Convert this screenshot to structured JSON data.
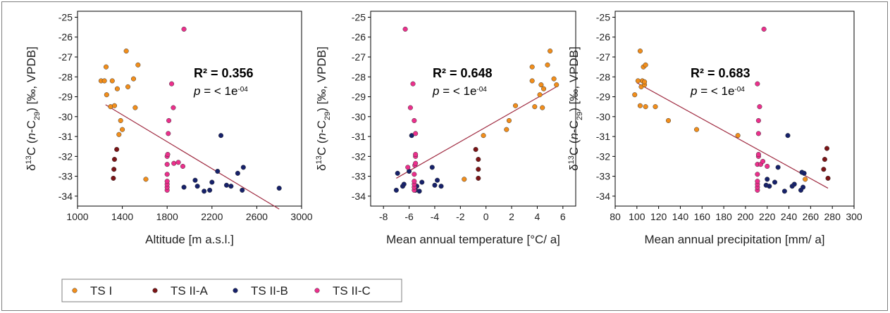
{
  "figure": {
    "y_axis_label": {
      "pre": "δ",
      "sup1": "13",
      "mid1": "C (",
      "italic": "n",
      "mid2": "-C",
      "sub": "29",
      "post": ") [‰, VPDB]"
    },
    "legend": [
      {
        "name": "TS I",
        "color": "#f28e1b"
      },
      {
        "name": "TS II-A",
        "color": "#7b1416"
      },
      {
        "name": "TS II-B",
        "color": "#16216a"
      },
      {
        "name": "TS II-C",
        "color": "#ec2f8c"
      }
    ],
    "colors": {
      "trendline": "#a02c42",
      "axis": "#000000",
      "frame": "#7f7f7f",
      "point_edge": "#3a3a3a"
    }
  },
  "chart_data": [
    {
      "type": "scatter",
      "xlabel": "Altitude [m a.s.l.]",
      "ylabel": "δ13C (n-C29) [‰, VPDB]",
      "xlim": [
        1000,
        3000
      ],
      "ylim": [
        -34.5,
        -24.7
      ],
      "xticks": [
        "1000",
        "1400",
        "1800",
        "2200",
        "2600",
        "3000"
      ],
      "yticks": [
        "-25",
        "-26",
        "-27",
        "-28",
        "-29",
        "-30",
        "-31",
        "-32",
        "-33",
        "-34"
      ],
      "annotation": {
        "r2": "R² = 0.356",
        "p_prefix": "p",
        "p_text": " = < 1e",
        "p_exp": "-04"
      },
      "trendline": [
        [
          1250,
          -29.4
        ],
        [
          2800,
          -34.65
        ]
      ],
      "series": [
        {
          "name": "TS I",
          "points": [
            [
              1210,
              -28.2
            ],
            [
              1240,
              -28.2
            ],
            [
              1255,
              -27.5
            ],
            [
              1260,
              -28.9
            ],
            [
              1295,
              -29.5
            ],
            [
              1310,
              -28.2
            ],
            [
              1330,
              -29.45
            ],
            [
              1355,
              -28.6
            ],
            [
              1370,
              -30.9
            ],
            [
              1385,
              -30.2
            ],
            [
              1400,
              -30.65
            ],
            [
              1435,
              -26.7
            ],
            [
              1450,
              -28.5
            ],
            [
              1500,
              -28.1
            ],
            [
              1515,
              -29.55
            ],
            [
              1540,
              -27.4
            ],
            [
              1610,
              -33.15
            ]
          ]
        },
        {
          "name": "TS II-A",
          "points": [
            [
              1320,
              -33.1
            ],
            [
              1325,
              -32.65
            ],
            [
              1330,
              -32.15
            ],
            [
              1350,
              -31.65
            ]
          ]
        },
        {
          "name": "TS II-B",
          "points": [
            [
              1950,
              -33.55
            ],
            [
              2050,
              -33.2
            ],
            [
              2070,
              -33.5
            ],
            [
              2130,
              -33.75
            ],
            [
              2180,
              -33.7
            ],
            [
              2200,
              -33.3
            ],
            [
              2250,
              -32.75
            ],
            [
              2280,
              -30.95
            ],
            [
              2330,
              -33.45
            ],
            [
              2370,
              -33.5
            ],
            [
              2430,
              -32.85
            ],
            [
              2470,
              -33.7
            ],
            [
              2480,
              -32.55
            ],
            [
              2800,
              -33.6
            ]
          ]
        },
        {
          "name": "TS II-C",
          "points": [
            [
              1800,
              -33.7
            ],
            [
              1800,
              -33.55
            ],
            [
              1800,
              -33.4
            ],
            [
              1800,
              -33.25
            ],
            [
              1800,
              -32.9
            ],
            [
              1800,
              -32.4
            ],
            [
              1800,
              -32.0
            ],
            [
              1805,
              -31.9
            ],
            [
              1810,
              -30.85
            ],
            [
              1815,
              -30.2
            ],
            [
              1840,
              -28.35
            ],
            [
              1855,
              -29.55
            ],
            [
              1860,
              -32.35
            ],
            [
              1900,
              -32.3
            ],
            [
              1940,
              -32.5
            ],
            [
              1950,
              -25.6
            ]
          ]
        }
      ]
    },
    {
      "type": "scatter",
      "xlabel": "Mean annual temperature  [°C/ a]",
      "ylabel": "δ13C (n-C29) [‰, VPDB]",
      "xlim": [
        -9,
        7
      ],
      "ylim": [
        -34.5,
        -24.7
      ],
      "xticks": [
        "-8",
        "-6",
        "-4",
        "-2",
        "0",
        "2",
        "4",
        "6"
      ],
      "yticks": [
        "-25",
        "-26",
        "-27",
        "-28",
        "-29",
        "-30",
        "-31",
        "-32",
        "-33",
        "-34"
      ],
      "annotation": {
        "r2": "R² = 0.648",
        "p_prefix": "p",
        "p_text": " = < 1e",
        "p_exp": "-04"
      },
      "trendline": [
        [
          -7.0,
          -33.1
        ],
        [
          5.5,
          -28.5
        ]
      ],
      "series": [
        {
          "name": "TS I",
          "points": [
            [
              -1.7,
              -33.15
            ],
            [
              -0.2,
              -30.95
            ],
            [
              1.6,
              -30.65
            ],
            [
              1.8,
              -30.2
            ],
            [
              2.3,
              -29.45
            ],
            [
              3.6,
              -28.2
            ],
            [
              3.6,
              -27.5
            ],
            [
              3.8,
              -29.5
            ],
            [
              4.2,
              -28.9
            ],
            [
              4.3,
              -28.4
            ],
            [
              4.4,
              -29.55
            ],
            [
              4.5,
              -28.6
            ],
            [
              4.8,
              -27.4
            ],
            [
              5.0,
              -26.7
            ],
            [
              5.3,
              -28.1
            ],
            [
              5.5,
              -28.4
            ]
          ]
        },
        {
          "name": "TS II-A",
          "points": [
            [
              -0.8,
              -31.65
            ],
            [
              -0.6,
              -32.15
            ],
            [
              -0.6,
              -32.65
            ],
            [
              -0.6,
              -33.1
            ]
          ]
        },
        {
          "name": "TS II-B",
          "points": [
            [
              -7.0,
              -33.7
            ],
            [
              -6.9,
              -32.85
            ],
            [
              -6.5,
              -33.5
            ],
            [
              -6.4,
              -33.4
            ],
            [
              -6.0,
              -32.75
            ],
            [
              -5.8,
              -30.95
            ],
            [
              -5.4,
              -33.5
            ],
            [
              -5.2,
              -33.75
            ],
            [
              -5.0,
              -33.3
            ],
            [
              -4.2,
              -32.55
            ],
            [
              -4.0,
              -33.45
            ],
            [
              -3.8,
              -33.2
            ],
            [
              -3.5,
              -33.5
            ],
            [
              -5.5,
              -33.7
            ]
          ]
        },
        {
          "name": "TS II-C",
          "points": [
            [
              -6.3,
              -25.6
            ],
            [
              -6.1,
              -32.55
            ],
            [
              -5.9,
              -29.55
            ],
            [
              -5.7,
              -28.35
            ],
            [
              -5.6,
              -33.7
            ],
            [
              -5.6,
              -33.55
            ],
            [
              -5.6,
              -33.4
            ],
            [
              -5.6,
              -33.25
            ],
            [
              -5.6,
              -32.9
            ],
            [
              -5.55,
              -32.45
            ],
            [
              -5.5,
              -32.35
            ],
            [
              -5.5,
              -32.0
            ],
            [
              -5.5,
              -31.9
            ],
            [
              -5.5,
              -30.85
            ],
            [
              -5.6,
              -30.2
            ]
          ]
        }
      ]
    },
    {
      "type": "scatter",
      "xlabel": "Mean annual precipitation  [mm/ a]",
      "ylabel": "δ13C (n-C29) [‰, VPDB]",
      "xlim": [
        80,
        300
      ],
      "ylim": [
        -34.5,
        -24.7
      ],
      "xticks": [
        "80",
        "100",
        "120",
        "140",
        "160",
        "180",
        "200",
        "220",
        "240",
        "260",
        "280",
        "300"
      ],
      "yticks": [
        "-25",
        "-26",
        "-27",
        "-28",
        "-29",
        "-30",
        "-31",
        "-32",
        "-33",
        "-34"
      ],
      "annotation": {
        "r2": "R² = 0.683",
        "p_prefix": "p",
        "p_text": " = < 1e",
        "p_exp": "-04"
      },
      "trendline": [
        [
          100,
          -28.3
        ],
        [
          276,
          -33.6
        ]
      ],
      "series": [
        {
          "name": "TS I",
          "points": [
            [
              98,
              -28.9
            ],
            [
              101,
              -28.2
            ],
            [
              103,
              -26.7
            ],
            [
              103,
              -29.45
            ],
            [
              104,
              -28.5
            ],
            [
              105,
              -28.2
            ],
            [
              106,
              -27.5
            ],
            [
              107,
              -28.4
            ],
            [
              107,
              -28.25
            ],
            [
              108,
              -27.4
            ],
            [
              108,
              -29.5
            ],
            [
              117,
              -29.5
            ],
            [
              129,
              -30.2
            ],
            [
              155,
              -30.65
            ],
            [
              193,
              -30.95
            ],
            [
              255,
              -33.15
            ]
          ]
        },
        {
          "name": "TS II-A",
          "points": [
            [
              272,
              -32.65
            ],
            [
              273,
              -32.15
            ],
            [
              275,
              -31.6
            ],
            [
              276,
              -33.1
            ]
          ]
        },
        {
          "name": "TS II-B",
          "points": [
            [
              219,
              -33.45
            ],
            [
              220,
              -33.15
            ],
            [
              222,
              -33.5
            ],
            [
              227,
              -33.3
            ],
            [
              230,
              -32.55
            ],
            [
              236,
              -33.75
            ],
            [
              239,
              -30.95
            ],
            [
              243,
              -33.5
            ],
            [
              245,
              -33.4
            ],
            [
              251,
              -33.7
            ],
            [
              252,
              -32.8
            ],
            [
              253,
              -33.55
            ],
            [
              254,
              -32.85
            ]
          ]
        },
        {
          "name": "TS II-C",
          "points": [
            [
              211,
              -33.7
            ],
            [
              211,
              -33.55
            ],
            [
              211,
              -33.4
            ],
            [
              211,
              -33.25
            ],
            [
              211,
              -32.9
            ],
            [
              211,
              -32.4
            ],
            [
              212,
              -32.0
            ],
            [
              212,
              -31.9
            ],
            [
              212,
              -30.85
            ],
            [
              212,
              -30.2
            ],
            [
              211,
              -28.35
            ],
            [
              213,
              -29.5
            ],
            [
              214,
              -32.4
            ],
            [
              216,
              -32.25
            ],
            [
              217,
              -25.6
            ],
            [
              220,
              -32.5
            ]
          ]
        }
      ]
    }
  ]
}
